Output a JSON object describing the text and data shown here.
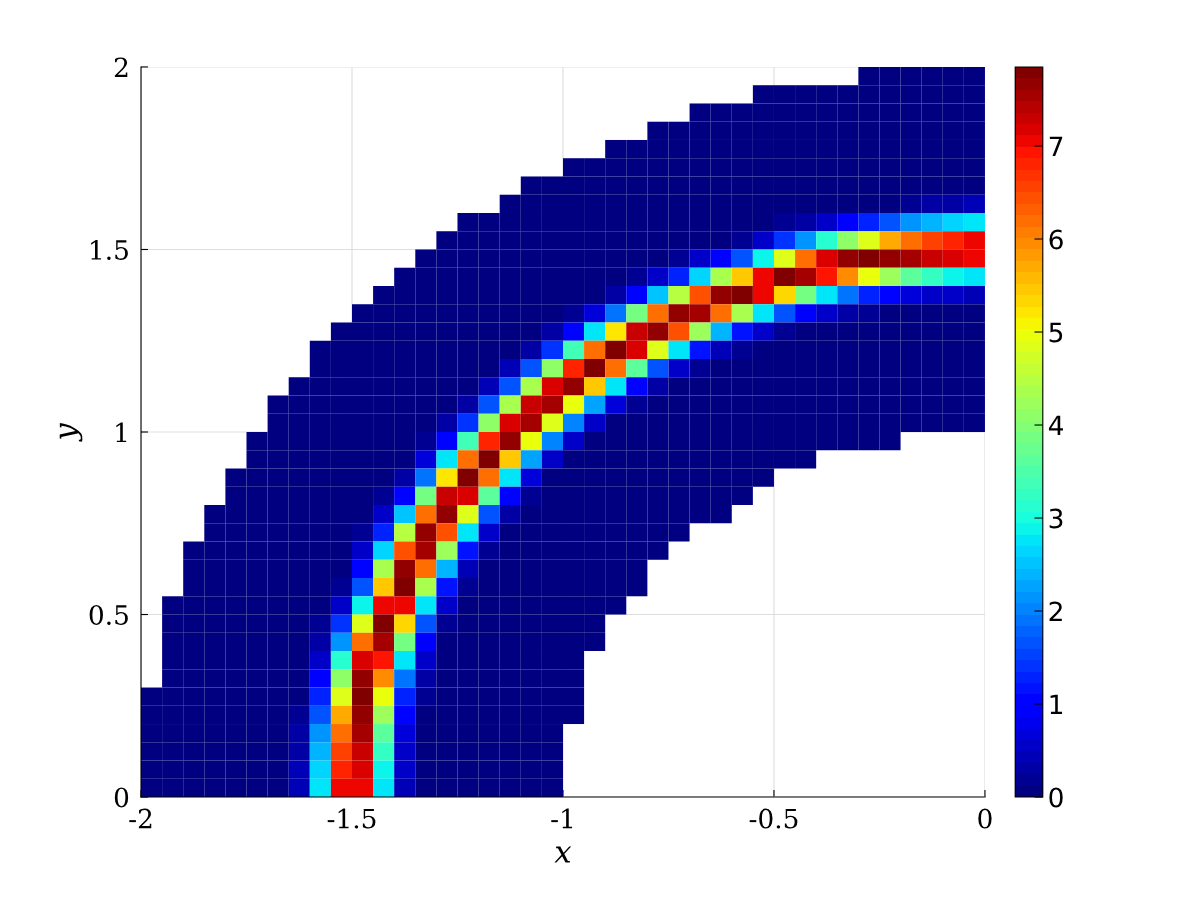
{
  "chart_data": {
    "type": "heatmap",
    "xlabel": "x",
    "ylabel": "y",
    "x": [
      -1.975,
      -1.925,
      -1.875,
      -1.825,
      -1.775,
      -1.725,
      -1.675,
      -1.625,
      -1.575,
      -1.525,
      -1.475,
      -1.425,
      -1.375,
      -1.325,
      -1.275,
      -1.225,
      -1.175,
      -1.125,
      -1.075,
      -1.025,
      -0.975,
      -0.925,
      -0.875,
      -0.825,
      -0.775,
      -0.725,
      -0.675,
      -0.625,
      -0.575,
      -0.525,
      -0.475,
      -0.425,
      -0.375,
      -0.325,
      -0.275,
      -0.225,
      -0.175,
      -0.125,
      -0.075,
      -0.025
    ],
    "y": [
      1.975,
      1.925,
      1.875,
      1.825,
      1.775,
      1.725,
      1.675,
      1.625,
      1.575,
      1.525,
      1.475,
      1.425,
      1.375,
      1.325,
      1.275,
      1.225,
      1.175,
      1.125,
      1.075,
      1.025,
      0.975,
      0.925,
      0.875,
      0.825,
      0.775,
      0.725,
      0.675,
      0.625,
      0.575,
      0.525,
      0.475,
      0.425,
      0.375,
      0.325,
      0.275,
      0.225,
      0.175,
      0.125,
      0.075,
      0.025
    ],
    "cells": [
      [
        null,
        null,
        null,
        null,
        null,
        null,
        null,
        null,
        null,
        null,
        null,
        null,
        null,
        null,
        null,
        null,
        null,
        null,
        null,
        null,
        null,
        null,
        null,
        null,
        null,
        null,
        null,
        null,
        null,
        null,
        null,
        null,
        null,
        null,
        0,
        0,
        0,
        0,
        0,
        0
      ],
      [
        null,
        null,
        null,
        null,
        null,
        null,
        null,
        null,
        null,
        null,
        null,
        null,
        null,
        null,
        null,
        null,
        null,
        null,
        null,
        null,
        null,
        null,
        null,
        null,
        null,
        null,
        null,
        null,
        null,
        0,
        0,
        0,
        0,
        0,
        0,
        0,
        0,
        0,
        0,
        0
      ],
      [
        null,
        null,
        null,
        null,
        null,
        null,
        null,
        null,
        null,
        null,
        null,
        null,
        null,
        null,
        null,
        null,
        null,
        null,
        null,
        null,
        null,
        null,
        null,
        null,
        null,
        null,
        0,
        0,
        0,
        0,
        0,
        0,
        0,
        0,
        0,
        0,
        0,
        0,
        0,
        0
      ],
      [
        null,
        null,
        null,
        null,
        null,
        null,
        null,
        null,
        null,
        null,
        null,
        null,
        null,
        null,
        null,
        null,
        null,
        null,
        null,
        null,
        null,
        null,
        null,
        null,
        0,
        0,
        0,
        0,
        0,
        0,
        0,
        0,
        0,
        0,
        0,
        0,
        0,
        0,
        0,
        0
      ],
      [
        null,
        null,
        null,
        null,
        null,
        null,
        null,
        null,
        null,
        null,
        null,
        null,
        null,
        null,
        null,
        null,
        null,
        null,
        null,
        null,
        null,
        null,
        0,
        0,
        0,
        0,
        0,
        0,
        0,
        0,
        0,
        0,
        0,
        0,
        0,
        0,
        0,
        0,
        0,
        0
      ],
      [
        null,
        null,
        null,
        null,
        null,
        null,
        null,
        null,
        null,
        null,
        null,
        null,
        null,
        null,
        null,
        null,
        null,
        null,
        null,
        null,
        0,
        0,
        0,
        0,
        0,
        0,
        0,
        0,
        0,
        0,
        0,
        0,
        0,
        0,
        0,
        0,
        0,
        0,
        0,
        0
      ],
      [
        null,
        null,
        null,
        null,
        null,
        null,
        null,
        null,
        null,
        null,
        null,
        null,
        null,
        null,
        null,
        null,
        null,
        null,
        0,
        0,
        0,
        0,
        0,
        0,
        0,
        0,
        0,
        0,
        0,
        0,
        0,
        0,
        0,
        0,
        0,
        0,
        0,
        0,
        0,
        0
      ],
      [
        null,
        null,
        null,
        null,
        null,
        null,
        null,
        null,
        null,
        null,
        null,
        null,
        null,
        null,
        null,
        null,
        null,
        0,
        0,
        0,
        0,
        0,
        0,
        0,
        0,
        0,
        0,
        0,
        0,
        0,
        0,
        0,
        0,
        0,
        0.1,
        0.1,
        0.2,
        0.3,
        0.3,
        0.4
      ],
      [
        null,
        null,
        null,
        null,
        null,
        null,
        null,
        null,
        null,
        null,
        null,
        null,
        null,
        null,
        null,
        0,
        0,
        0,
        0,
        0,
        0,
        0,
        0,
        0,
        0,
        0,
        0,
        0,
        0,
        0.1,
        0.2,
        0.3,
        0.6,
        0.9,
        1.3,
        1.7,
        2.1,
        2.4,
        2.6,
        2.8
      ],
      [
        null,
        null,
        null,
        null,
        null,
        null,
        null,
        null,
        null,
        null,
        null,
        null,
        null,
        null,
        0,
        0,
        0,
        0,
        0,
        0,
        0,
        0,
        0,
        0,
        0,
        0,
        0,
        0.1,
        0.2,
        0.5,
        1.4,
        2.2,
        3.1,
        4.1,
        4.9,
        5.7,
        6.2,
        6.6,
        6.8,
        7.0
      ],
      [
        null,
        null,
        null,
        null,
        null,
        null,
        null,
        null,
        null,
        null,
        null,
        null,
        null,
        0,
        0,
        0,
        0,
        0,
        0,
        0,
        0,
        0,
        0,
        0,
        0.1,
        0.2,
        0.5,
        1.1,
        1.7,
        2.9,
        4.9,
        6.2,
        7.2,
        7.7,
        7.8,
        7.7,
        7.5,
        7.3,
        7.2,
        7.0
      ],
      [
        null,
        null,
        null,
        null,
        null,
        null,
        null,
        null,
        null,
        null,
        null,
        null,
        0,
        0,
        0,
        0,
        0,
        0,
        0,
        0,
        0,
        0,
        0,
        0.2,
        0.5,
        1.3,
        2.6,
        4.3,
        5.5,
        7.0,
        7.8,
        7.5,
        6.9,
        5.9,
        5.0,
        4.2,
        3.6,
        3.2,
        2.9,
        2.7
      ],
      [
        null,
        null,
        null,
        null,
        null,
        null,
        null,
        null,
        null,
        null,
        null,
        0,
        0,
        0,
        0,
        0,
        0,
        0,
        0,
        0,
        0,
        0.1,
        0.3,
        1.1,
        2.5,
        4.5,
        6.5,
        7.7,
        7.8,
        7.0,
        5.3,
        3.9,
        2.7,
        1.9,
        1.3,
        1.0,
        0.7,
        0.6,
        0.5,
        0.4
      ],
      [
        null,
        null,
        null,
        null,
        null,
        null,
        null,
        null,
        null,
        null,
        0,
        0,
        0,
        0,
        0,
        0,
        0,
        0,
        0,
        0,
        0.2,
        0.7,
        1.9,
        3.9,
        6.2,
        7.7,
        7.5,
        6.2,
        4.4,
        2.7,
        1.6,
        0.9,
        0.5,
        0.3,
        0.2,
        0.1,
        0.1,
        0,
        0,
        0
      ],
      [
        null,
        null,
        null,
        null,
        null,
        null,
        null,
        null,
        null,
        0,
        0,
        0,
        0,
        0,
        0,
        0,
        0,
        0,
        0,
        0.3,
        1.0,
        2.8,
        5.2,
        7.3,
        7.7,
        6.4,
        4.2,
        2.4,
        1.2,
        0.5,
        0.2,
        0.1,
        0,
        0,
        0,
        0,
        0,
        0,
        0,
        0
      ],
      [
        null,
        null,
        null,
        null,
        null,
        null,
        null,
        null,
        0,
        0,
        0,
        0,
        0,
        0,
        0,
        0,
        0,
        0,
        0.3,
        1.4,
        3.4,
        6.2,
        7.8,
        7.2,
        4.9,
        2.7,
        1.2,
        0.4,
        0.2,
        0,
        0,
        0,
        0,
        0,
        0,
        0,
        0,
        0,
        0,
        0
      ],
      [
        null,
        null,
        null,
        null,
        null,
        null,
        null,
        null,
        0,
        0,
        0,
        0,
        0,
        0,
        0,
        0,
        0.1,
        0.4,
        1.6,
        4.1,
        6.8,
        7.8,
        6.2,
        3.6,
        1.6,
        0.6,
        0.2,
        0,
        0,
        0,
        0,
        0,
        0,
        0,
        0,
        0,
        0,
        0,
        0,
        0
      ],
      [
        null,
        null,
        null,
        null,
        null,
        null,
        null,
        0,
        0,
        0,
        0,
        0,
        0,
        0,
        0,
        0,
        0.4,
        1.7,
        4.3,
        7.2,
        7.7,
        5.5,
        2.7,
        1.0,
        0.3,
        0.1,
        0,
        0,
        0,
        0,
        0,
        0,
        0,
        0,
        0,
        0,
        0,
        0,
        0,
        0
      ],
      [
        null,
        null,
        null,
        null,
        null,
        null,
        0,
        0,
        0,
        0,
        0,
        0,
        0,
        0,
        0,
        0.3,
        1.6,
        4.3,
        7.3,
        7.5,
        5.0,
        2.3,
        0.7,
        0.2,
        0,
        0,
        0,
        0,
        0,
        0,
        0,
        0,
        0,
        0,
        0,
        0,
        0,
        0,
        0,
        0
      ],
      [
        null,
        null,
        null,
        null,
        null,
        null,
        0,
        0,
        0,
        0,
        0,
        0,
        0,
        0,
        0.3,
        1.4,
        4.1,
        7.2,
        7.5,
        4.9,
        2.0,
        0.6,
        0.1,
        0,
        0,
        0,
        0,
        0,
        0,
        0,
        0,
        0,
        0,
        0,
        0,
        0,
        0,
        0,
        0,
        0
      ],
      [
        null,
        null,
        null,
        null,
        null,
        0,
        0,
        0,
        0,
        0,
        0,
        0,
        0,
        0.2,
        1.0,
        3.4,
        6.8,
        7.7,
        5.0,
        2.0,
        0.5,
        0.1,
        0,
        0,
        0,
        0,
        0,
        0,
        0,
        0,
        0,
        0,
        0,
        0,
        0,
        0,
        null,
        null,
        null,
        null
      ],
      [
        null,
        null,
        null,
        null,
        null,
        0,
        0,
        0,
        0,
        0,
        0,
        0,
        0.1,
        0.7,
        2.8,
        6.2,
        7.8,
        5.5,
        2.3,
        0.6,
        0.1,
        0,
        0,
        0,
        0,
        0,
        0,
        0,
        0,
        0,
        0,
        0,
        null,
        null,
        null,
        null,
        null,
        null,
        null,
        null
      ],
      [
        null,
        null,
        null,
        null,
        0,
        0,
        0,
        0,
        0,
        0,
        0,
        0,
        0.3,
        1.9,
        5.2,
        7.8,
        6.2,
        2.7,
        0.7,
        0.1,
        0,
        0,
        0,
        0,
        0,
        0,
        0,
        0,
        0,
        0,
        null,
        null,
        null,
        null,
        null,
        null,
        null,
        null,
        null,
        null
      ],
      [
        null,
        null,
        null,
        null,
        0,
        0,
        0,
        0,
        0,
        0,
        0,
        0.2,
        1.1,
        3.9,
        7.3,
        7.2,
        3.6,
        1.0,
        0.2,
        0,
        0,
        0,
        0,
        0,
        0,
        0,
        0,
        0,
        0,
        null,
        null,
        null,
        null,
        null,
        null,
        null,
        null,
        null,
        null,
        null
      ],
      [
        null,
        null,
        null,
        0,
        0,
        0,
        0,
        0,
        0,
        0,
        0.1,
        0.5,
        2.5,
        6.2,
        7.7,
        4.9,
        1.6,
        0.3,
        0,
        0,
        0,
        0,
        0,
        0,
        0,
        0,
        0,
        0,
        null,
        null,
        null,
        null,
        null,
        null,
        null,
        null,
        null,
        null,
        null,
        null
      ],
      [
        null,
        null,
        null,
        0,
        0,
        0,
        0,
        0,
        0,
        0,
        0.2,
        1.3,
        4.5,
        7.7,
        6.4,
        2.7,
        0.6,
        0.1,
        0,
        0,
        0,
        0,
        0,
        0,
        0,
        0,
        null,
        null,
        null,
        null,
        null,
        null,
        null,
        null,
        null,
        null,
        null,
        null,
        null,
        null
      ],
      [
        null,
        null,
        0,
        0,
        0,
        0,
        0,
        0,
        0,
        0,
        0.5,
        2.6,
        6.5,
        7.5,
        4.2,
        1.2,
        0.2,
        0,
        0,
        0,
        0,
        0,
        0,
        0,
        0,
        null,
        null,
        null,
        null,
        null,
        null,
        null,
        null,
        null,
        null,
        null,
        null,
        null,
        null,
        null
      ],
      [
        null,
        null,
        0,
        0,
        0,
        0,
        0,
        0,
        0,
        0.1,
        1.1,
        4.3,
        7.7,
        6.2,
        2.4,
        0.4,
        0,
        0,
        0,
        0,
        0,
        0,
        0,
        0,
        null,
        null,
        null,
        null,
        null,
        null,
        null,
        null,
        null,
        null,
        null,
        null,
        null,
        null,
        null,
        null
      ],
      [
        null,
        null,
        0,
        0,
        0,
        0,
        0,
        0,
        0,
        0.2,
        1.7,
        5.5,
        7.8,
        4.4,
        1.2,
        0.2,
        0,
        0,
        0,
        0,
        0,
        0,
        0,
        0,
        null,
        null,
        null,
        null,
        null,
        null,
        null,
        null,
        null,
        null,
        null,
        null,
        null,
        null,
        null,
        null
      ],
      [
        null,
        0,
        0,
        0,
        0,
        0,
        0,
        0,
        0.1,
        0.5,
        2.9,
        7.0,
        7.0,
        2.7,
        0.5,
        0,
        0,
        0,
        0,
        0,
        0,
        0,
        0,
        null,
        null,
        null,
        null,
        null,
        null,
        null,
        null,
        null,
        null,
        null,
        null,
        null,
        null,
        null,
        null,
        null
      ],
      [
        null,
        0,
        0,
        0,
        0,
        0,
        0,
        0,
        0.2,
        1.4,
        4.9,
        7.8,
        5.3,
        1.6,
        0.2,
        0,
        0,
        0,
        0,
        0,
        0,
        0,
        null,
        null,
        null,
        null,
        null,
        null,
        null,
        null,
        null,
        null,
        null,
        null,
        null,
        null,
        null,
        null,
        null,
        null
      ],
      [
        null,
        0,
        0,
        0,
        0,
        0,
        0,
        0,
        0.3,
        2.2,
        6.2,
        7.5,
        3.9,
        0.9,
        0.1,
        0,
        0,
        0,
        0,
        0,
        0,
        0,
        null,
        null,
        null,
        null,
        null,
        null,
        null,
        null,
        null,
        null,
        null,
        null,
        null,
        null,
        null,
        null,
        null,
        null
      ],
      [
        null,
        0,
        0,
        0,
        0,
        0,
        0,
        0,
        0.6,
        3.1,
        7.2,
        6.9,
        2.7,
        0.5,
        0,
        0,
        0,
        0,
        0,
        0,
        0,
        null,
        null,
        null,
        null,
        null,
        null,
        null,
        null,
        null,
        null,
        null,
        null,
        null,
        null,
        null,
        null,
        null,
        null,
        null
      ],
      [
        null,
        0,
        0,
        0,
        0,
        0,
        0,
        0.1,
        0.9,
        4.1,
        7.7,
        5.9,
        1.9,
        0.3,
        0,
        0,
        0,
        0,
        0,
        0,
        0,
        null,
        null,
        null,
        null,
        null,
        null,
        null,
        null,
        null,
        null,
        null,
        null,
        null,
        null,
        null,
        null,
        null,
        null,
        null
      ],
      [
        0,
        0,
        0,
        0,
        0,
        0,
        0,
        0.1,
        1.3,
        4.9,
        7.8,
        5.0,
        1.3,
        0.2,
        0,
        0,
        0,
        0,
        0,
        0,
        0,
        null,
        null,
        null,
        null,
        null,
        null,
        null,
        null,
        null,
        null,
        null,
        null,
        null,
        null,
        null,
        null,
        null,
        null,
        null
      ],
      [
        0,
        0,
        0,
        0,
        0,
        0,
        0,
        0.2,
        1.7,
        5.7,
        7.7,
        4.2,
        1.0,
        0.1,
        0,
        0,
        0,
        0,
        0,
        0,
        0,
        null,
        null,
        null,
        null,
        null,
        null,
        null,
        null,
        null,
        null,
        null,
        null,
        null,
        null,
        null,
        null,
        null,
        null,
        null
      ],
      [
        0,
        0,
        0,
        0,
        0,
        0,
        0,
        0.3,
        2.1,
        6.2,
        7.5,
        3.6,
        0.7,
        0.1,
        0,
        0,
        0,
        0,
        0,
        0,
        null,
        null,
        null,
        null,
        null,
        null,
        null,
        null,
        null,
        null,
        null,
        null,
        null,
        null,
        null,
        null,
        null,
        null,
        null,
        null
      ],
      [
        0,
        0,
        0,
        0,
        0,
        0,
        0,
        0.3,
        2.4,
        6.6,
        7.3,
        3.2,
        0.6,
        0,
        0,
        0,
        0,
        0,
        0,
        0,
        null,
        null,
        null,
        null,
        null,
        null,
        null,
        null,
        null,
        null,
        null,
        null,
        null,
        null,
        null,
        null,
        null,
        null,
        null,
        null
      ],
      [
        0,
        0,
        0,
        0,
        0,
        0,
        0,
        0.4,
        2.6,
        6.8,
        7.2,
        2.9,
        0.5,
        0,
        0,
        0,
        0,
        0,
        0,
        0,
        null,
        null,
        null,
        null,
        null,
        null,
        null,
        null,
        null,
        null,
        null,
        null,
        null,
        null,
        null,
        null,
        null,
        null,
        null,
        null
      ],
      [
        0,
        0,
        0,
        0,
        0,
        0,
        0,
        0.4,
        2.8,
        7.0,
        7.0,
        2.7,
        0.4,
        0,
        0,
        0,
        0,
        0,
        0,
        0,
        null,
        null,
        null,
        null,
        null,
        null,
        null,
        null,
        null,
        null,
        null,
        null,
        null,
        null,
        null,
        null,
        null,
        null,
        null,
        null
      ]
    ],
    "xlim": [
      -2,
      0
    ],
    "ylim": [
      0,
      2
    ],
    "xticks": [
      -2,
      -1.5,
      -1,
      -0.5,
      0
    ],
    "yticks": [
      0,
      0.5,
      1,
      1.5,
      2
    ],
    "clim": [
      0,
      7.85
    ],
    "cticks": [
      0,
      1,
      2,
      3,
      4,
      5,
      6,
      7
    ],
    "grid": true
  }
}
